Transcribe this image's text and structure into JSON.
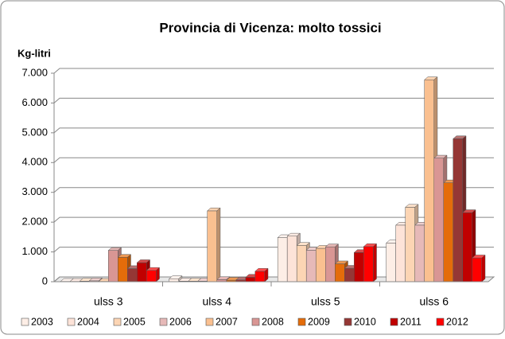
{
  "chart_data": {
    "type": "bar3d",
    "title": "Provincia di Vicenza: molto tossici",
    "y_axis_label": "Kg-litri",
    "categories": [
      "ulss 3",
      "ulss 4",
      "ulss 5",
      "ulss 6"
    ],
    "series": [
      {
        "name": "2003",
        "color": "#fdeee6",
        "values": [
          10,
          100,
          1480,
          1300
        ]
      },
      {
        "name": "2004",
        "color": "#fde3d8",
        "values": [
          10,
          20,
          1530,
          1900
        ]
      },
      {
        "name": "2005",
        "color": "#fcd5b4",
        "values": [
          20,
          20,
          1220,
          2500
        ]
      },
      {
        "name": "2006",
        "color": "#e6b9b8",
        "values": [
          30,
          20,
          1060,
          1900
        ]
      },
      {
        "name": "2007",
        "color": "#fac090",
        "values": [
          10,
          2380,
          1120,
          6780
        ]
      },
      {
        "name": "2008",
        "color": "#d99694",
        "values": [
          1050,
          70,
          1170,
          4150
        ]
      },
      {
        "name": "2009",
        "color": "#e46c0a",
        "values": [
          820,
          50,
          600,
          3320
        ]
      },
      {
        "name": "2010",
        "color": "#953735",
        "values": [
          440,
          60,
          450,
          4800
        ]
      },
      {
        "name": "2011",
        "color": "#c00000",
        "values": [
          640,
          150,
          980,
          2320
        ]
      },
      {
        "name": "2012",
        "color": "#ff0000",
        "values": [
          380,
          350,
          1180,
          800
        ]
      }
    ],
    "ylim": [
      0,
      7000
    ],
    "yticks": [
      0,
      {
        "value": 1000,
        "label": "1.000"
      },
      {
        "value": 2000,
        "label": "2.000"
      },
      {
        "value": 3000,
        "label": "3.000"
      },
      {
        "value": 4000,
        "label": "4.000"
      },
      {
        "value": 5000,
        "label": "5.000"
      },
      {
        "value": 6000,
        "label": "6.000"
      },
      {
        "value": 7000,
        "label": "7.000"
      }
    ],
    "grid": true,
    "legend": "bottom"
  }
}
